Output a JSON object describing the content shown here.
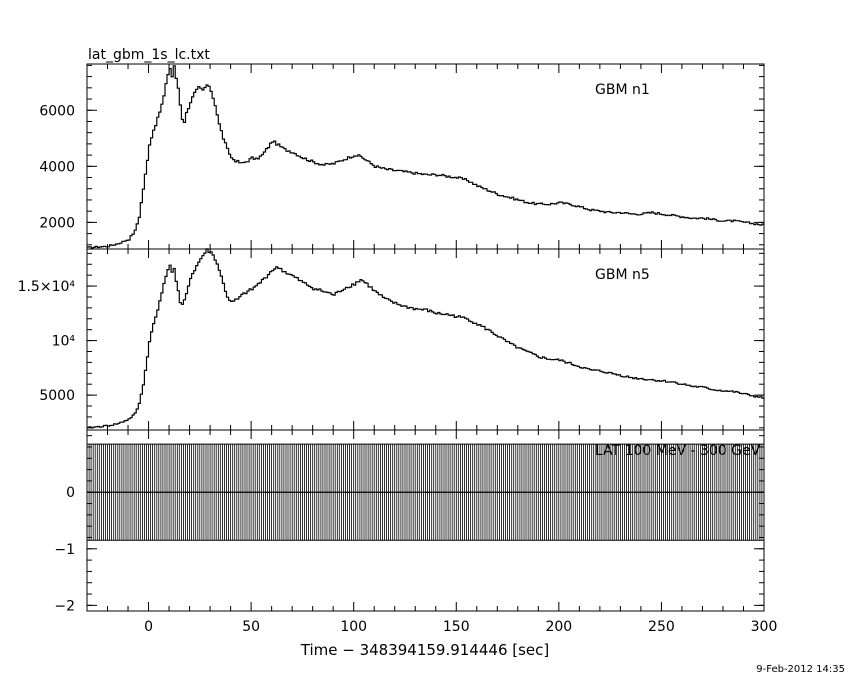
{
  "chart_data": [
    {
      "type": "line",
      "panel": "top",
      "title": "lat_gbm_1s_lc.txt",
      "label": "GBM n1",
      "xlim": [
        -30,
        300
      ],
      "ylim": [
        1050,
        7650
      ],
      "yticks": [
        2000,
        4000,
        6000
      ],
      "ytick_labels": [
        "2000",
        "4000",
        "6000"
      ],
      "x": [
        -30,
        -20,
        -15,
        -10,
        -7,
        -5,
        -3,
        -1,
        0,
        2,
        4,
        6,
        7,
        8,
        9,
        10,
        11,
        12,
        13,
        14,
        15,
        16,
        17,
        18,
        20,
        22,
        24,
        26,
        28,
        30,
        32,
        34,
        36,
        38,
        40,
        42,
        45,
        48,
        50,
        52,
        55,
        58,
        60,
        63,
        66,
        70,
        75,
        80,
        85,
        90,
        95,
        100,
        103,
        106,
        110,
        115,
        120,
        125,
        130,
        135,
        140,
        145,
        150,
        155,
        160,
        165,
        170,
        175,
        180,
        185,
        190,
        195,
        200,
        205,
        210,
        215,
        220,
        225,
        230,
        235,
        240,
        245,
        250,
        255,
        260,
        265,
        270,
        275,
        280,
        285,
        290,
        295,
        300
      ],
      "y": [
        1100,
        1150,
        1250,
        1400,
        1700,
        2200,
        3200,
        4200,
        4800,
        5300,
        5700,
        6200,
        6500,
        6900,
        7300,
        7500,
        7200,
        7600,
        7100,
        6800,
        6200,
        5700,
        5600,
        5900,
        6300,
        6600,
        6800,
        6700,
        6900,
        6700,
        6200,
        5500,
        5000,
        4600,
        4300,
        4200,
        4100,
        4200,
        4300,
        4250,
        4400,
        4700,
        4900,
        4750,
        4600,
        4500,
        4300,
        4150,
        4050,
        4100,
        4250,
        4400,
        4350,
        4200,
        4000,
        3900,
        3850,
        3800,
        3750,
        3700,
        3700,
        3650,
        3600,
        3500,
        3300,
        3150,
        3000,
        2900,
        2800,
        2700,
        2650,
        2650,
        2700,
        2650,
        2550,
        2450,
        2400,
        2350,
        2350,
        2300,
        2300,
        2350,
        2300,
        2250,
        2200,
        2150,
        2150,
        2100,
        2050,
        2050,
        2000,
        1950,
        1900
      ]
    },
    {
      "type": "line",
      "panel": "middle",
      "label": "GBM n5",
      "xlim": [
        -30,
        300
      ],
      "ylim": [
        1800,
        18400
      ],
      "yticks": [
        5000,
        10000,
        15000
      ],
      "ytick_labels": [
        "5000",
        "10⁴",
        "1.5×10⁴"
      ],
      "x": [
        -30,
        -20,
        -15,
        -10,
        -7,
        -5,
        -3,
        -1,
        0,
        2,
        4,
        6,
        8,
        10,
        11,
        12,
        13,
        14,
        15,
        16,
        18,
        20,
        22,
        24,
        26,
        28,
        30,
        32,
        34,
        36,
        38,
        40,
        43,
        46,
        50,
        55,
        60,
        63,
        66,
        70,
        75,
        80,
        85,
        90,
        95,
        100,
        103,
        106,
        110,
        115,
        120,
        125,
        130,
        135,
        140,
        145,
        150,
        155,
        160,
        165,
        170,
        175,
        180,
        185,
        190,
        195,
        200,
        205,
        210,
        215,
        220,
        225,
        230,
        235,
        240,
        245,
        250,
        255,
        260,
        265,
        270,
        275,
        280,
        285,
        290,
        295,
        300
      ],
      "y": [
        2000,
        2200,
        2400,
        2800,
        3300,
        4200,
        6000,
        8500,
        10000,
        11500,
        12800,
        14500,
        16000,
        16800,
        16400,
        16600,
        15500,
        14500,
        13500,
        13200,
        14200,
        15800,
        16500,
        17200,
        17800,
        18300,
        18100,
        17500,
        16500,
        15200,
        14000,
        13500,
        13800,
        14300,
        14700,
        15500,
        16500,
        16700,
        16300,
        15900,
        15300,
        14800,
        14500,
        14200,
        14800,
        15200,
        15600,
        15200,
        14500,
        13800,
        13400,
        13100,
        12900,
        12800,
        12500,
        12400,
        12200,
        12000,
        11500,
        11000,
        10400,
        9800,
        9300,
        8900,
        8500,
        8300,
        8200,
        7900,
        7600,
        7300,
        7200,
        7000,
        6800,
        6600,
        6500,
        6400,
        6300,
        6200,
        6000,
        5800,
        5700,
        5500,
        5400,
        5300,
        5100,
        4900,
        4700
      ]
    },
    {
      "type": "histogram",
      "panel": "bottom",
      "label": "LAT 100 MeV - 300 GeV",
      "xlim": [
        -30,
        300
      ],
      "ylim": [
        -2.1,
        1.1
      ],
      "yticks": [
        -2,
        -1,
        0
      ],
      "ytick_labels": [
        "−2",
        "−1",
        "0"
      ],
      "xticks": [
        0,
        50,
        100,
        150,
        200,
        250,
        300
      ],
      "xtick_labels": [
        "0",
        "50",
        "100",
        "150",
        "200",
        "250",
        "300"
      ],
      "xlabel": "Time − 348394159.914446 [sec]",
      "bin_width": 1,
      "band_low": -0.85,
      "band_high": 0.85,
      "baseline": 0
    }
  ],
  "footer": {
    "date": "9-Feb-2012 14:35"
  }
}
